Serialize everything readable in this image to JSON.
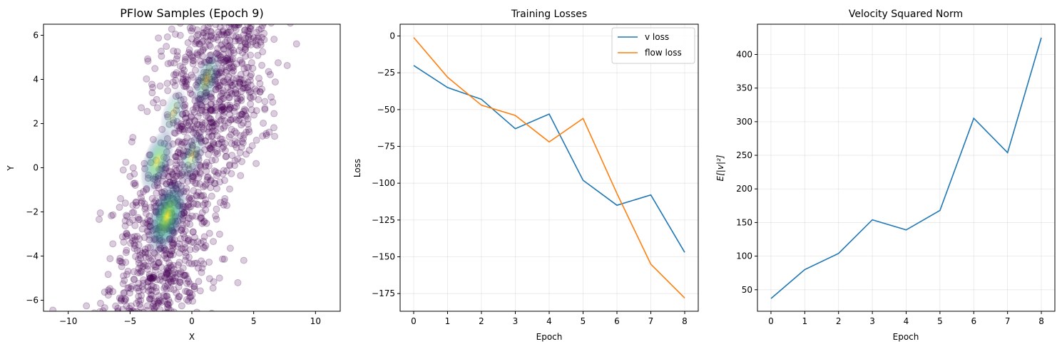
{
  "chart_data": [
    {
      "type": "scatter",
      "title": "PFlow Samples (Epoch 9)",
      "xlabel": "X",
      "ylabel": "Y",
      "xlim": [
        -12,
        12
      ],
      "ylim": [
        -6.5,
        6.5
      ],
      "xticks": [
        -10,
        -5,
        0,
        5,
        10
      ],
      "xtick_labels": [
        "−10",
        "−5",
        "0",
        "5",
        "10"
      ],
      "yticks": [
        -6,
        -4,
        -2,
        0,
        2,
        4,
        6
      ],
      "ytick_labels": [
        "−6",
        "−4",
        "−2",
        "0",
        "2",
        "4",
        "6"
      ],
      "grid": false,
      "colormap": "viridis",
      "point_color_low": "#440154",
      "point_alpha": 0.2,
      "density_peaks": [
        {
          "x": -2.0,
          "y": -2.2,
          "level": 1.0
        },
        {
          "x": -2.8,
          "y": 0.3,
          "level": 0.7
        },
        {
          "x": 1.2,
          "y": 4.0,
          "level": 0.55
        },
        {
          "x": -1.5,
          "y": 2.5,
          "level": 0.4
        },
        {
          "x": 0.0,
          "y": 0.5,
          "level": 0.45
        }
      ]
    },
    {
      "type": "line",
      "title": "Training Losses",
      "xlabel": "Epoch",
      "ylabel": "Loss",
      "x": [
        0,
        1,
        2,
        3,
        4,
        5,
        6,
        7,
        8
      ],
      "xlim": [
        -0.4,
        8.4
      ],
      "ylim": [
        -187,
        8
      ],
      "xticks": [
        0,
        1,
        2,
        3,
        4,
        5,
        6,
        7,
        8
      ],
      "xtick_labels": [
        "0",
        "1",
        "2",
        "3",
        "4",
        "5",
        "6",
        "7",
        "8"
      ],
      "yticks": [
        0,
        -25,
        -50,
        -75,
        -100,
        -125,
        -150,
        -175
      ],
      "ytick_labels": [
        "0",
        "−25",
        "−50",
        "−75",
        "−100",
        "−125",
        "−150",
        "−175"
      ],
      "grid": true,
      "legend": "top-right",
      "series": [
        {
          "name": "v loss",
          "color": "#1f77b4",
          "values": [
            -20,
            -35,
            -43,
            -63,
            -53,
            -98,
            -115,
            -108,
            -147
          ]
        },
        {
          "name": "flow loss",
          "color": "#ff7f0e",
          "values": [
            -1,
            -28,
            -47,
            -54,
            -72,
            -56,
            -107,
            -155,
            -178
          ]
        }
      ]
    },
    {
      "type": "line",
      "title": "Velocity Squared Norm",
      "xlabel": "Epoch",
      "ylabel": "E[|v|²]",
      "x": [
        0,
        1,
        2,
        3,
        4,
        5,
        6,
        7,
        8
      ],
      "xlim": [
        -0.4,
        8.4
      ],
      "ylim": [
        18,
        445
      ],
      "xticks": [
        0,
        1,
        2,
        3,
        4,
        5,
        6,
        7,
        8
      ],
      "xtick_labels": [
        "0",
        "1",
        "2",
        "3",
        "4",
        "5",
        "6",
        "7",
        "8"
      ],
      "yticks": [
        50,
        100,
        150,
        200,
        250,
        300,
        350,
        400
      ],
      "ytick_labels": [
        "50",
        "100",
        "150",
        "200",
        "250",
        "300",
        "350",
        "400"
      ],
      "grid": true,
      "series": [
        {
          "color": "#1f77b4",
          "values": [
            37,
            80,
            104,
            154,
            139,
            168,
            305,
            254,
            425
          ]
        }
      ]
    }
  ]
}
